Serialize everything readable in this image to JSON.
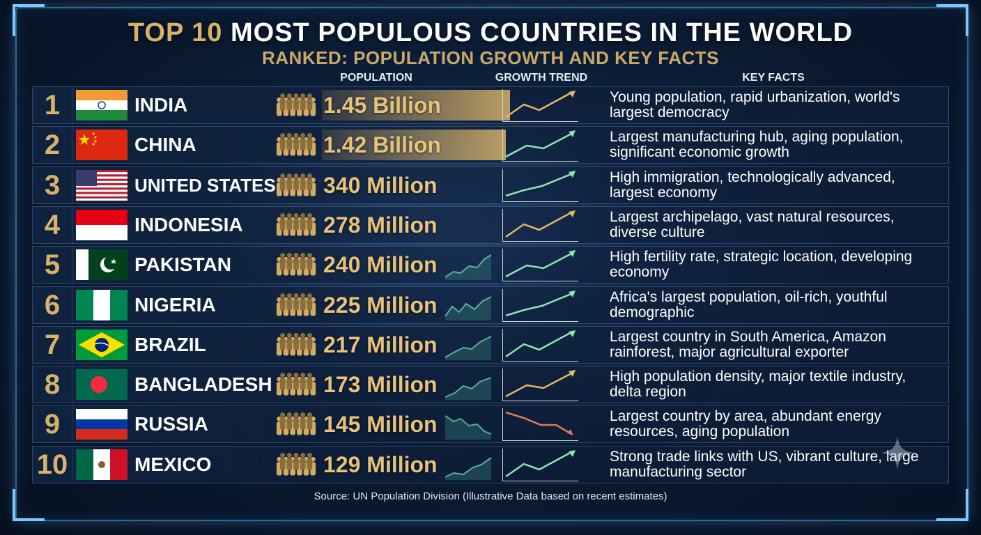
{
  "title": {
    "accent": "TOP 10",
    "rest": " MOST POPULOUS COUNTRIES IN THE WORLD"
  },
  "subtitle": "RANKED: POPULATION GROWTH AND KEY FACTS",
  "columns": {
    "population": "POPULATION",
    "growth": "GROWTH TREND",
    "facts": "KEY FACTS"
  },
  "colors": {
    "gold": "#d8b26a",
    "up": "#8ee6b0",
    "up_alt": "#e3b868",
    "down": "#e07a5f"
  },
  "rows": [
    {
      "rank": "1",
      "country": "INDIA",
      "population": "1.45 Billion",
      "value_millions": 1450,
      "trend": "up",
      "trend_color": "gold",
      "facts": "Young population, rapid urbanization, world's largest democracy",
      "flag": "india-flag"
    },
    {
      "rank": "2",
      "country": "CHINA",
      "population": "1.42 Billion",
      "value_millions": 1420,
      "trend": "up",
      "trend_color": "green",
      "facts": "Largest manufacturing hub, aging population, significant economic growth",
      "flag": "china-flag"
    },
    {
      "rank": "3",
      "country": "UNITED STATES",
      "population": "340 Million",
      "value_millions": 340,
      "trend": "up",
      "trend_color": "green",
      "facts": "High immigration, technologically advanced, largest economy",
      "flag": "usa-flag"
    },
    {
      "rank": "4",
      "country": "INDONESIA",
      "population": "278 Million",
      "value_millions": 278,
      "trend": "up",
      "trend_color": "gold",
      "facts": "Largest archipelago, vast natural resources, diverse culture",
      "flag": "indonesia-flag"
    },
    {
      "rank": "5",
      "country": "PAKISTAN",
      "population": "240 Million",
      "value_millions": 240,
      "trend": "up",
      "trend_color": "green",
      "facts": "High fertility rate, strategic location, developing economy",
      "flag": "pakistan-flag"
    },
    {
      "rank": "6",
      "country": "NIGERIA",
      "population": "225 Million",
      "value_millions": 225,
      "trend": "up",
      "trend_color": "green",
      "facts": "Africa's largest population, oil-rich, youthful demographic",
      "flag": "nigeria-flag"
    },
    {
      "rank": "7",
      "country": "BRAZIL",
      "population": "217 Million",
      "value_millions": 217,
      "trend": "up",
      "trend_color": "green",
      "facts": "Largest country in South America, Amazon rainforest, major agricultural exporter",
      "flag": "brazil-flag"
    },
    {
      "rank": "8",
      "country": "BANGLADESH",
      "population": "173 Million",
      "value_millions": 173,
      "trend": "up",
      "trend_color": "gold",
      "facts": "High population density, major textile industry, delta region",
      "flag": "bangladesh-flag"
    },
    {
      "rank": "9",
      "country": "RUSSIA",
      "population": "145 Million",
      "value_millions": 145,
      "trend": "down",
      "trend_color": "red",
      "facts": "Largest country by area, abundant energy resources, aging population",
      "flag": "russia-flag"
    },
    {
      "rank": "10",
      "country": "MEXICO",
      "population": "129 Million",
      "value_millions": 129,
      "trend": "up",
      "trend_color": "green",
      "facts": "Strong trade links with US, vibrant culture, large manufacturing sector",
      "flag": "mexico-flag"
    }
  ],
  "source": "Source: UN Population Division (Illustrative Data based on recent estimates)",
  "icons": {
    "people": "people-group-icon",
    "sparkle": "sparkle-icon"
  }
}
